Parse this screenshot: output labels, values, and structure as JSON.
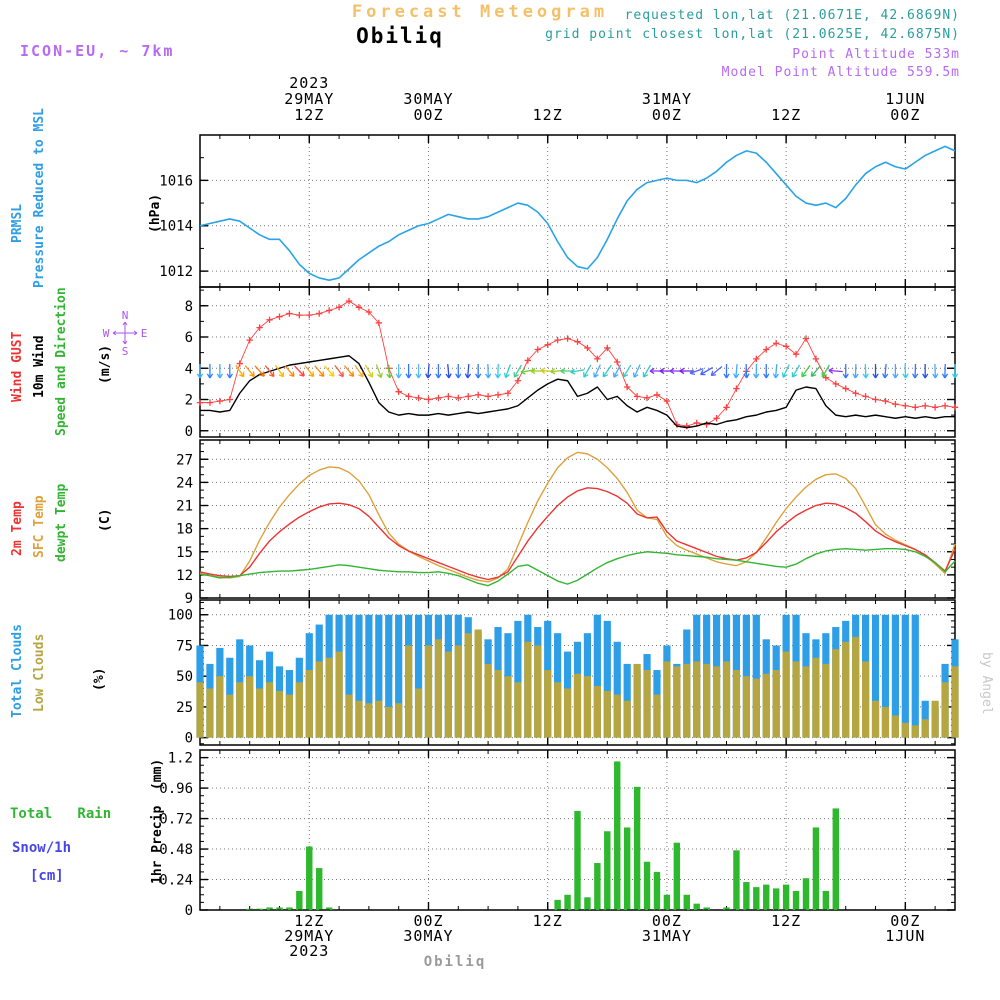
{
  "header": {
    "title": "Forecast Meteogram",
    "station": "Obiliq",
    "model": "ICON-EU, ~ 7km",
    "requested": "requested lon,lat (21.0671E, 42.6869N)",
    "grid_point": "grid point closest lon,lat (21.0625E, 42.6875N)",
    "point_altitude": "Point Altitude 533m",
    "model_point_altitude": "Model Point Altitude 559.5m"
  },
  "footer": {
    "station": "Obiliq"
  },
  "watermark": "by Angel",
  "chart_data": {
    "type": "multi-panel-meteogram",
    "n_points": 77,
    "time_axis": {
      "year": "2023",
      "year_t": 11,
      "ticks": [
        {
          "t": 11,
          "z": "12Z",
          "date": "29MAY"
        },
        {
          "t": 23,
          "z": "00Z",
          "date": "30MAY"
        },
        {
          "t": 35,
          "z": "12Z"
        },
        {
          "t": 47,
          "z": "00Z",
          "date": "31MAY"
        },
        {
          "t": 59,
          "z": "12Z"
        },
        {
          "t": 71,
          "z": "00Z",
          "date": "1JUN"
        }
      ]
    },
    "panels": {
      "pressure": {
        "type": "line",
        "ylim": [
          1011.3,
          1018.0
        ],
        "ytick_vals": [
          1012,
          1014,
          1016
        ],
        "yticks": [
          "1012",
          "1014",
          "1016"
        ],
        "yminor": 1
      },
      "wind": {
        "type": "line",
        "ylim": [
          -0.4,
          9.2
        ],
        "ytick_vals": [
          0,
          2,
          4,
          6,
          8
        ],
        "yticks": [
          "0",
          "2",
          "4",
          "6",
          "8"
        ],
        "yminor": 1
      },
      "temp": {
        "type": "line",
        "ylim": [
          9.0,
          29.5
        ],
        "ytick_vals": [
          9,
          12,
          15,
          18,
          21,
          24,
          27
        ],
        "yticks": [
          "9",
          "12",
          "15",
          "18",
          "21",
          "24",
          "27"
        ],
        "yminor": 1
      },
      "clouds": {
        "type": "bar",
        "ylim": [
          -6,
          112
        ],
        "ytick_vals": [
          0,
          25,
          50,
          75,
          100
        ],
        "yticks": [
          "0",
          "25",
          "50",
          "75",
          "100"
        ],
        "yminor": 5
      },
      "precip": {
        "type": "bar",
        "ylim": [
          0,
          1.26
        ],
        "ytick_vals": [
          0,
          0.24,
          0.48,
          0.72,
          0.96,
          1.2
        ],
        "yticks": [
          "0",
          "0.24",
          "0.48",
          "0.72",
          "0.96",
          "1.2"
        ],
        "yminor": 0.06
      }
    },
    "legends": {
      "pressure1": "PRMSL",
      "pressure2": "Pressure Reduced to MSL",
      "pressure_unit": "(hPa)",
      "wind1": "Wind GUST",
      "wind2": "10m Wind",
      "wind3": "Speed and Direction",
      "wind_unit": "(m/s)",
      "temp1": "2m Temp",
      "temp2": "SFC Temp",
      "temp3": "dewpt Temp",
      "temp_unit": "(C)",
      "clouds1": "Total Clouds",
      "clouds2": "Low Clouds",
      "clouds_unit": "(%)",
      "precip1": "Total   Rain",
      "precip2": "Snow/1h",
      "precip3": "[cm]",
      "precip_unit": "1hr Precip  (mm)"
    },
    "compass": {
      "n": "N",
      "e": "E",
      "s": "S",
      "w": "W"
    },
    "colors": {
      "pressure": "#29a3e8",
      "gust": "#ff4040",
      "wind_speed": "#000000",
      "temp_2m": "#ee3333",
      "temp_sfc": "#dda23c",
      "dewpoint": "#33b533",
      "total_clouds": "#2e9fe6",
      "low_clouds": "#b5a642",
      "rain": "#2db82d",
      "snow": "#4646e8",
      "compass": "#aa55ee",
      "grid": "#777777"
    },
    "series": {
      "pressure": [
        1014.0,
        1014.1,
        1014.2,
        1014.3,
        1014.2,
        1013.9,
        1013.6,
        1013.4,
        1013.4,
        1012.9,
        1012.3,
        1011.9,
        1011.7,
        1011.6,
        1011.7,
        1012.1,
        1012.5,
        1012.8,
        1013.1,
        1013.3,
        1013.6,
        1013.8,
        1014.0,
        1014.1,
        1014.3,
        1014.5,
        1014.4,
        1014.3,
        1014.3,
        1014.4,
        1014.6,
        1014.8,
        1015.0,
        1014.9,
        1014.6,
        1014.1,
        1013.3,
        1012.6,
        1012.2,
        1012.1,
        1012.6,
        1013.4,
        1014.3,
        1015.1,
        1015.6,
        1015.9,
        1016.0,
        1016.1,
        1016.0,
        1016.0,
        1015.9,
        1016.1,
        1016.4,
        1016.8,
        1017.1,
        1017.3,
        1017.2,
        1016.8,
        1016.3,
        1015.8,
        1015.3,
        1015.0,
        1014.9,
        1015.0,
        1014.8,
        1015.2,
        1015.8,
        1016.3,
        1016.6,
        1016.8,
        1016.6,
        1016.5,
        1016.8,
        1017.1,
        1017.3,
        1017.5,
        1017.3
      ],
      "gust": [
        1.8,
        1.8,
        1.9,
        2.0,
        4.3,
        5.8,
        6.6,
        7.1,
        7.3,
        7.5,
        7.4,
        7.4,
        7.5,
        7.7,
        7.9,
        8.3,
        7.9,
        7.6,
        6.9,
        4.0,
        2.5,
        2.2,
        2.1,
        2.0,
        2.1,
        2.2,
        2.1,
        2.2,
        2.3,
        2.2,
        2.3,
        2.4,
        3.2,
        4.5,
        5.2,
        5.5,
        5.8,
        5.9,
        5.7,
        5.3,
        4.6,
        5.3,
        4.4,
        2.8,
        2.2,
        2.1,
        2.3,
        1.9,
        0.4,
        0.3,
        0.5,
        0.4,
        0.8,
        1.5,
        2.7,
        3.8,
        4.6,
        5.2,
        5.6,
        5.4,
        4.9,
        5.9,
        4.6,
        3.4,
        3.0,
        2.7,
        2.4,
        2.2,
        2.0,
        1.9,
        1.7,
        1.6,
        1.5,
        1.6,
        1.5,
        1.6,
        1.5
      ],
      "wind_speed": [
        1.3,
        1.3,
        1.2,
        1.3,
        2.4,
        3.2,
        3.6,
        3.8,
        4.0,
        4.2,
        4.3,
        4.4,
        4.5,
        4.6,
        4.7,
        4.8,
        4.3,
        3.1,
        1.8,
        1.2,
        1.0,
        1.1,
        1.0,
        1.0,
        1.1,
        1.0,
        1.1,
        1.2,
        1.1,
        1.2,
        1.3,
        1.4,
        1.6,
        2.1,
        2.6,
        3.0,
        3.3,
        3.2,
        2.2,
        2.4,
        2.8,
        2.0,
        2.2,
        1.6,
        1.2,
        1.5,
        1.3,
        1.0,
        0.3,
        0.2,
        0.3,
        0.5,
        0.4,
        0.6,
        0.7,
        0.9,
        1.0,
        1.2,
        1.3,
        1.5,
        2.6,
        2.8,
        2.7,
        1.6,
        1.0,
        0.9,
        1.0,
        0.9,
        1.0,
        0.9,
        0.8,
        0.9,
        0.8,
        0.9,
        0.8,
        0.9,
        0.9
      ],
      "wind_dir_deg": [
        90,
        90,
        90,
        90,
        55,
        50,
        48,
        52,
        55,
        50,
        47,
        52,
        50,
        48,
        53,
        50,
        55,
        60,
        70,
        80,
        90,
        90,
        90,
        95,
        90,
        85,
        90,
        95,
        90,
        88,
        92,
        110,
        120,
        170,
        180,
        185,
        175,
        180,
        170,
        120,
        115,
        125,
        118,
        122,
        115,
        120,
        180,
        180,
        180,
        180,
        160,
        150,
        140,
        90,
        95,
        88,
        92,
        90,
        95,
        115,
        120,
        125,
        130,
        120,
        185,
        90,
        92,
        88,
        90,
        95,
        90,
        88,
        92,
        90,
        88,
        92,
        90
      ],
      "wind_dir_color": [
        "#3bb0ff",
        "#2e7fff",
        "#3bb0ff",
        "#2e7fff",
        "#ffaa00",
        "#ff9900",
        "#ff7700",
        "#ff5533",
        "#ffbb00",
        "#ff8800",
        "#ff4444",
        "#ffaa00",
        "#ff8800",
        "#ffcc00",
        "#ff5544",
        "#ff8800",
        "#ffaa33",
        "#d8cc22",
        "#99cc33",
        "#66cc33",
        "#55bbee",
        "#3377ff",
        "#55bbee",
        "#2b4bee",
        "#3377ff",
        "#2b4bee",
        "#3377ff",
        "#2b4bee",
        "#3377ff",
        "#44aaff",
        "#33ccee",
        "#33cccc",
        "#44cc99",
        "#66cc33",
        "#99cc22",
        "#cccc22",
        "#99cc22",
        "#55cc77",
        "#33cccc",
        "#33cccc",
        "#44aaff",
        "#33cccc",
        "#44aaff",
        "#33cccc",
        "#44aaff",
        "#33cccc",
        "#8833ff",
        "#7722ee",
        "#8833ff",
        "#7722ee",
        "#5566ff",
        "#4466ff",
        "#5566ff",
        "#3377ff",
        "#44aaff",
        "#3377ff",
        "#44aaff",
        "#3377ff",
        "#44aaff",
        "#33cccc",
        "#33cccc",
        "#44cc44",
        "#33bb66",
        "#44cc44",
        "#8833ff",
        "#3377ff",
        "#44aaff",
        "#33ccee",
        "#2b4bee",
        "#3377ff",
        "#44aaff",
        "#33ccee",
        "#3377ff",
        "#2b4bee",
        "#44aaff",
        "#3377ff",
        "#33ccee"
      ],
      "temp_2m": [
        12.4,
        12.1,
        11.9,
        11.8,
        11.9,
        13.0,
        14.8,
        16.4,
        17.6,
        18.6,
        19.5,
        20.2,
        20.8,
        21.2,
        21.3,
        21.1,
        20.6,
        19.6,
        18.2,
        16.8,
        15.8,
        15.1,
        14.6,
        14.1,
        13.6,
        13.1,
        12.6,
        12.1,
        11.7,
        11.4,
        11.7,
        12.4,
        14.4,
        16.4,
        18.1,
        19.6,
        21.0,
        22.1,
        22.9,
        23.3,
        23.2,
        22.8,
        22.2,
        21.3,
        19.9,
        19.4,
        19.5,
        17.6,
        16.4,
        15.9,
        15.4,
        14.9,
        14.4,
        14.1,
        13.9,
        14.2,
        14.9,
        16.2,
        17.6,
        18.7,
        19.7,
        20.4,
        21.0,
        21.3,
        21.2,
        20.7,
        20.0,
        18.9,
        17.7,
        16.9,
        16.3,
        15.8,
        15.3,
        14.6,
        13.6,
        12.5,
        15.3
      ],
      "temp_sfc": [
        12.2,
        11.9,
        11.7,
        11.6,
        11.8,
        13.8,
        16.5,
        18.8,
        20.8,
        22.4,
        23.8,
        24.9,
        25.6,
        26.0,
        25.9,
        25.3,
        24.2,
        22.4,
        19.8,
        17.4,
        16.0,
        15.1,
        14.4,
        13.8,
        13.2,
        12.7,
        12.2,
        11.7,
        11.3,
        11.1,
        11.6,
        12.8,
        15.8,
        18.8,
        21.6,
        23.9,
        25.9,
        27.2,
        27.9,
        27.7,
        27.0,
        25.9,
        24.5,
        22.7,
        20.4,
        19.4,
        19.2,
        17.0,
        15.8,
        15.2,
        14.7,
        14.2,
        13.7,
        13.4,
        13.2,
        13.7,
        14.9,
        16.8,
        18.8,
        20.6,
        22.1,
        23.4,
        24.4,
        25.0,
        25.1,
        24.5,
        23.2,
        20.9,
        18.5,
        17.3,
        16.5,
        15.9,
        15.3,
        14.5,
        13.4,
        12.2,
        16.0
      ],
      "dewpoint": [
        12.1,
        11.9,
        11.6,
        11.7,
        11.9,
        12.1,
        12.3,
        12.4,
        12.5,
        12.5,
        12.6,
        12.7,
        12.9,
        13.1,
        13.3,
        13.2,
        13.0,
        12.8,
        12.6,
        12.5,
        12.4,
        12.4,
        12.3,
        12.3,
        12.4,
        12.2,
        11.9,
        11.4,
        10.9,
        10.6,
        11.2,
        12.1,
        13.1,
        13.3,
        12.6,
        11.9,
        11.2,
        10.8,
        11.3,
        12.1,
        12.9,
        13.6,
        14.1,
        14.5,
        14.8,
        15.0,
        14.9,
        14.8,
        14.6,
        14.5,
        14.4,
        14.3,
        14.1,
        14.0,
        13.9,
        13.7,
        13.5,
        13.3,
        13.1,
        13.0,
        13.4,
        14.1,
        14.7,
        15.1,
        15.3,
        15.4,
        15.3,
        15.2,
        15.3,
        15.4,
        15.4,
        15.3,
        15.0,
        14.4,
        13.6,
        12.4,
        13.8
      ],
      "total_clouds": [
        75,
        60,
        73,
        65,
        80,
        75,
        63,
        70,
        58,
        55,
        65,
        85,
        92,
        100,
        100,
        100,
        100,
        100,
        100,
        100,
        100,
        100,
        100,
        100,
        100,
        100,
        100,
        98,
        85,
        80,
        90,
        85,
        95,
        100,
        90,
        95,
        85,
        70,
        78,
        85,
        100,
        95,
        78,
        60,
        55,
        68,
        55,
        75,
        60,
        88,
        100,
        100,
        100,
        100,
        100,
        100,
        100,
        80,
        75,
        100,
        100,
        85,
        80,
        85,
        90,
        95,
        100,
        100,
        100,
        100,
        100,
        100,
        100,
        30,
        25,
        60,
        80
      ],
      "low_clouds": [
        45,
        40,
        50,
        35,
        45,
        50,
        40,
        45,
        38,
        35,
        45,
        55,
        62,
        65,
        70,
        35,
        30,
        28,
        30,
        25,
        28,
        75,
        40,
        75,
        80,
        70,
        75,
        85,
        88,
        60,
        55,
        50,
        45,
        78,
        75,
        55,
        45,
        40,
        52,
        50,
        42,
        38,
        35,
        30,
        60,
        55,
        35,
        62,
        58,
        60,
        62,
        60,
        58,
        62,
        55,
        50,
        48,
        52,
        55,
        70,
        62,
        58,
        65,
        60,
        72,
        78,
        82,
        62,
        30,
        25,
        18,
        12,
        10,
        15,
        30,
        45,
        58
      ],
      "precip": [
        0,
        0,
        0,
        0,
        0,
        0.01,
        0.01,
        0.02,
        0.02,
        0.02,
        0.15,
        0.5,
        0.33,
        0.02,
        0,
        0,
        0,
        0,
        0,
        0,
        0,
        0,
        0,
        0,
        0,
        0,
        0,
        0,
        0,
        0,
        0,
        0,
        0,
        0,
        0,
        0,
        0.08,
        0.12,
        0.78,
        0.1,
        0.37,
        0.62,
        1.17,
        0.65,
        0.97,
        0.38,
        0.3,
        0.12,
        0.53,
        0.12,
        0.05,
        0.02,
        0,
        0.02,
        0.47,
        0.22,
        0.18,
        0.2,
        0.17,
        0.2,
        0.15,
        0.25,
        0.65,
        0.15,
        0.8,
        0,
        0,
        0,
        0,
        0,
        0,
        0,
        0,
        0,
        0,
        0,
        0
      ],
      "snow": []
    }
  }
}
